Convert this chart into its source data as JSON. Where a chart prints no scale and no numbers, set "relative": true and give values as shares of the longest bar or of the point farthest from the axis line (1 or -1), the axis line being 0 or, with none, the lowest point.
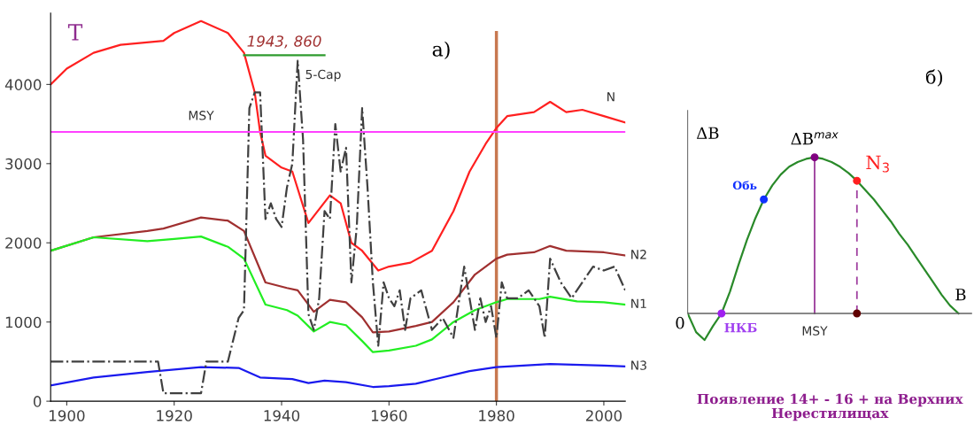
{
  "chart_data": [
    {
      "type": "line",
      "title": "a)",
      "xlim": [
        1897,
        2004
      ],
      "xticks": [
        1900,
        1920,
        1940,
        1960,
        1980,
        2000
      ],
      "ylim": [
        0,
        4900
      ],
      "yticks": [
        0,
        1000,
        2000,
        3000,
        4000
      ],
      "grid": false,
      "legend": false,
      "series": [
        {
          "name": "N",
          "color": "#ff2020",
          "x": [
            1897,
            1900,
            1905,
            1910,
            1918,
            1920,
            1925,
            1930,
            1933,
            1935,
            1936,
            1937,
            1940,
            1942,
            1945,
            1949,
            1951,
            1953,
            1955,
            1958,
            1960,
            1964,
            1968,
            1972,
            1975,
            1978,
            1980,
            1982,
            1987,
            1990,
            1993,
            1996,
            2000,
            2004
          ],
          "values": [
            4000,
            4200,
            4400,
            4500,
            4550,
            4650,
            4800,
            4650,
            4400,
            3900,
            3400,
            3100,
            2950,
            2900,
            2250,
            2600,
            2500,
            2000,
            1900,
            1650,
            1700,
            1750,
            1900,
            2400,
            2900,
            3250,
            3450,
            3600,
            3650,
            3780,
            3650,
            3680,
            3600,
            3520
          ]
        },
        {
          "name": "N2",
          "color": "#a03030",
          "x": [
            1897,
            1905,
            1915,
            1918,
            1925,
            1930,
            1933,
            1937,
            1941,
            1943,
            1946,
            1949,
            1952,
            1955,
            1957,
            1960,
            1965,
            1968,
            1972,
            1976,
            1980,
            1982,
            1987,
            1990,
            1993,
            2000,
            2004
          ],
          "values": [
            1900,
            2070,
            2150,
            2180,
            2320,
            2280,
            2150,
            1500,
            1430,
            1400,
            1130,
            1280,
            1250,
            1060,
            870,
            880,
            950,
            1000,
            1250,
            1600,
            1800,
            1850,
            1880,
            1960,
            1900,
            1880,
            1840
          ]
        },
        {
          "name": "N1",
          "color": "#22ee22",
          "x": [
            1897,
            1905,
            1915,
            1920,
            1925,
            1930,
            1933,
            1937,
            1941,
            1943,
            1946,
            1949,
            1952,
            1955,
            1957,
            1960,
            1965,
            1968,
            1972,
            1976,
            1980,
            1982,
            1988,
            1990,
            1995,
            2000,
            2004
          ],
          "values": [
            1900,
            2070,
            2020,
            2050,
            2080,
            1950,
            1800,
            1220,
            1150,
            1080,
            880,
            1000,
            960,
            760,
            620,
            640,
            700,
            780,
            1000,
            1150,
            1250,
            1290,
            1290,
            1320,
            1260,
            1250,
            1220
          ]
        },
        {
          "name": "N3",
          "color": "#1a1aee",
          "x": [
            1897,
            1905,
            1915,
            1920,
            1925,
            1932,
            1936,
            1942,
            1945,
            1948,
            1952,
            1957,
            1960,
            1965,
            1970,
            1975,
            1980,
            1990,
            2000,
            2004
          ],
          "values": [
            200,
            300,
            370,
            400,
            430,
            420,
            300,
            280,
            230,
            260,
            240,
            180,
            190,
            220,
            300,
            380,
            430,
            470,
            450,
            440
          ]
        },
        {
          "name": "5-Cap",
          "color": "#404040",
          "line_style": "dashed",
          "x": [
            1897,
            1917,
            1918,
            1925,
            1926,
            1930,
            1932,
            1933,
            1934,
            1935,
            1936,
            1937,
            1938,
            1939,
            1940,
            1941,
            1942,
            1943,
            1944,
            1945,
            1946,
            1947,
            1948,
            1949,
            1950,
            1951,
            1952,
            1953,
            1954,
            1955,
            1956,
            1957,
            1958,
            1959,
            1960,
            1961,
            1962,
            1963,
            1964,
            1966,
            1968,
            1970,
            1972,
            1974,
            1975,
            1976,
            1977,
            1978,
            1979,
            1980,
            1981,
            1982,
            1984,
            1986,
            1988,
            1989,
            1990,
            1992,
            1994,
            1996,
            1998,
            2000,
            2002,
            2004
          ],
          "values": [
            500,
            500,
            100,
            100,
            500,
            500,
            1050,
            1150,
            3700,
            3900,
            3900,
            2300,
            2500,
            2300,
            2200,
            2700,
            3000,
            4300,
            3300,
            1100,
            900,
            1300,
            2400,
            2300,
            3500,
            2900,
            3200,
            1500,
            2200,
            3700,
            2700,
            1500,
            700,
            1500,
            1300,
            1200,
            1400,
            900,
            1300,
            1400,
            900,
            1050,
            800,
            1700,
            1300,
            900,
            1300,
            1000,
            1200,
            800,
            1500,
            1300,
            1300,
            1400,
            1200,
            800,
            1800,
            1500,
            1300,
            1500,
            1700,
            1650,
            1700,
            1400
          ]
        },
        {
          "color": "#2e9b2e",
          "x": [
            1933,
            1948
          ],
          "values": [
            4370,
            4370
          ]
        }
      ],
      "ref_lines": [
        {
          "axis": "y",
          "value": 3400,
          "label": "MSY",
          "color": "#ff40ff",
          "line_style": "solid"
        },
        {
          "axis": "x",
          "value": 1980,
          "color": "#c87850",
          "line_style": "solid"
        }
      ],
      "annotations": [
        "T",
        "1943, 860"
      ]
    },
    {
      "type": "line",
      "title": "б)",
      "xlabel": "B",
      "ylabel": "ΔB",
      "relative": true,
      "legend": false,
      "categories": [
        null,
        null,
        null,
        null,
        null,
        null,
        null,
        null,
        null,
        null,
        null,
        null,
        null,
        null,
        null,
        null,
        null,
        null,
        null,
        null,
        null,
        null,
        null,
        null,
        null,
        null,
        null,
        null,
        null,
        null,
        null,
        null,
        null
      ],
      "series": [
        {
          "color": "#2a8a2a",
          "values": [
            0,
            -0.12,
            -0.17,
            -0.08,
            0,
            0.14,
            0.31,
            0.47,
            0.61,
            0.73,
            0.82,
            0.89,
            0.94,
            0.97,
            0.99,
            1,
            0.99,
            0.97,
            0.94,
            0.9,
            0.85,
            0.79,
            0.73,
            0.66,
            0.59,
            0.51,
            0.44,
            0.36,
            0.28,
            0.2,
            0.12,
            0.05,
            0
          ]
        }
      ],
      "annotations": [
        "0",
        "НКБ",
        "Обь",
        "ΔB$^{max}$",
        "N$_{3}$",
        "Появление 14+ - 16 + на Верхних Нерестилищах",
        "MSY"
      ]
    }
  ]
}
